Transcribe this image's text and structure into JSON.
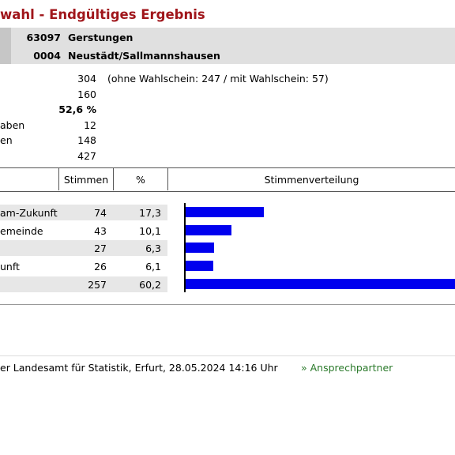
{
  "page": {
    "title": "wahl - Endgültiges Ergebnis"
  },
  "region": {
    "code": "63097",
    "name": "Gerstungen",
    "sub_code": "0004",
    "sub_name": "Neustädt/Sallmannshausen"
  },
  "summary": [
    {
      "label": "",
      "value": "304",
      "note": "(ohne Wahlschein: 247 / mit Wahlschein: 57)",
      "bold": false
    },
    {
      "label": "",
      "value": "160",
      "note": "",
      "bold": false
    },
    {
      "label": "",
      "value": "52,6 %",
      "note": "",
      "bold": true
    },
    {
      "label": "aben",
      "value": "12",
      "note": "",
      "bold": false
    },
    {
      "label": "en",
      "value": "148",
      "note": "",
      "bold": false
    },
    {
      "label": "",
      "value": "427",
      "note": "",
      "bold": false
    }
  ],
  "table": {
    "headers": {
      "stimmen": "Stimmen",
      "percent": "%",
      "distribution": "Stimmenverteilung"
    },
    "rows": [
      {
        "label": "am-Zukunft",
        "stimmen": "74",
        "percent": "17,3",
        "share": 17.3
      },
      {
        "label": "emeinde",
        "stimmen": "43",
        "percent": "10,1",
        "share": 10.1
      },
      {
        "label": "",
        "stimmen": "27",
        "percent": "6,3",
        "share": 6.3
      },
      {
        "label": "unft",
        "stimmen": "26",
        "percent": "6,1",
        "share": 6.1
      },
      {
        "label": "",
        "stimmen": "257",
        "percent": "60,2",
        "share": 60.2
      }
    ]
  },
  "footer": {
    "source": "er Landesamt für Statistik, Erfurt, 28.05.2024 14:16 Uhr",
    "link": "» Ansprechpartner"
  },
  "colors": {
    "title": "#a0161b",
    "bar": "#0000ee",
    "link": "#2b7a2b"
  }
}
